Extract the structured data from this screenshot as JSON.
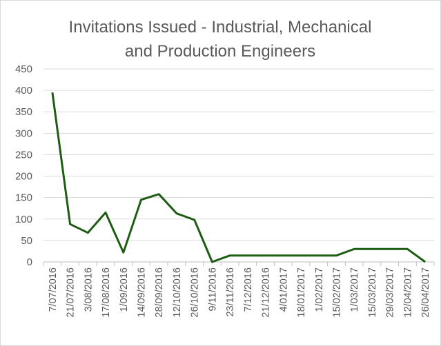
{
  "chart_data": {
    "type": "line",
    "title_lines": [
      "Invitations Issued - Industrial, Mechanical",
      "and Production Engineers"
    ],
    "xlabel": "",
    "ylabel": "",
    "ylim": [
      0,
      450
    ],
    "yticks": [
      0,
      50,
      100,
      150,
      200,
      250,
      300,
      350,
      400,
      450
    ],
    "grid": true,
    "legend": "none",
    "categories": [
      "7/07/2016",
      "21/07/2016",
      "3/08/2016",
      "17/08/2016",
      "1/09/2016",
      "14/09/2016",
      "28/09/2016",
      "12/10/2016",
      "26/10/2016",
      "9/11/2016",
      "23/11/2016",
      "7/12/2016",
      "21/12/2016",
      "4/01/2017",
      "18/01/2017",
      "1/02/2017",
      "15/02/2017",
      "1/03/2017",
      "15/03/2017",
      "29/03/2017",
      "12/04/2017",
      "26/04/2017"
    ],
    "series": [
      {
        "name": "Invitations",
        "color": "#1e5c14",
        "values": [
          395,
          88,
          68,
          115,
          22,
          145,
          158,
          113,
          98,
          0,
          15,
          15,
          15,
          15,
          15,
          15,
          15,
          30,
          30,
          30,
          30,
          0
        ]
      }
    ]
  }
}
